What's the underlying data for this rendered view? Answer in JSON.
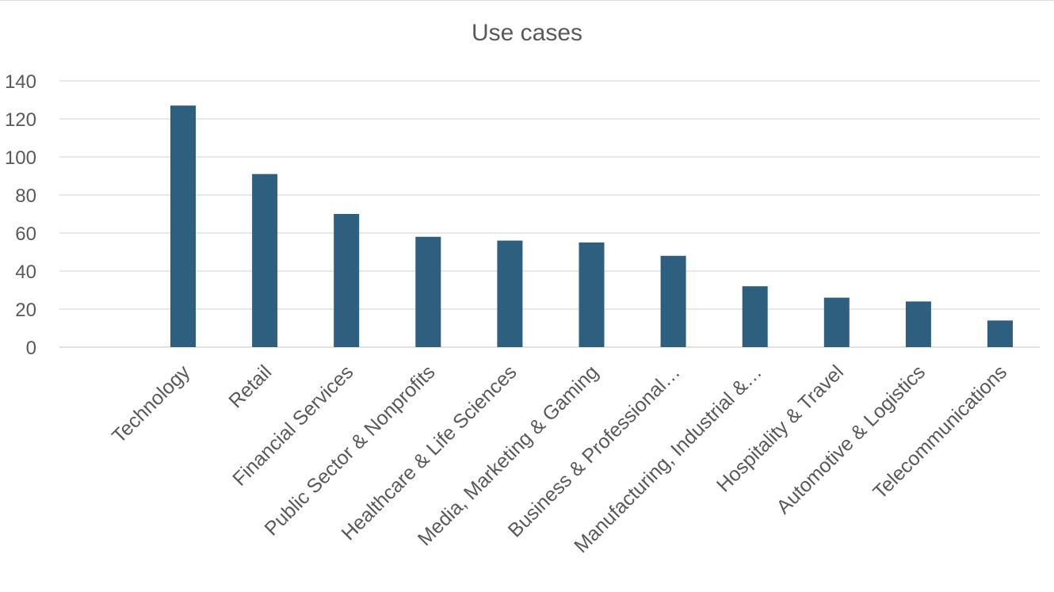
{
  "chart_data": {
    "type": "bar",
    "title": "Use cases",
    "xlabel": "",
    "ylabel": "",
    "categories": [
      "Technology",
      "Retail",
      "Financial Services",
      "Public Sector & Nonprofits",
      "Healthcare & Life Sciences",
      "Media, Marketing & Gaming",
      "Business & Professional…",
      "Manufacturing, Industrial &…",
      "Hospitality & Travel",
      "Automotive & Logistics",
      "Telecommunications"
    ],
    "values": [
      127,
      91,
      70,
      58,
      56,
      55,
      48,
      32,
      26,
      24,
      14
    ],
    "ylim": [
      0,
      140
    ],
    "yticks": [
      "0",
      "20",
      "40",
      "60",
      "80",
      "100",
      "120",
      "140"
    ],
    "grid": true,
    "legend": "none",
    "bar_color": "#2e5f7f"
  }
}
